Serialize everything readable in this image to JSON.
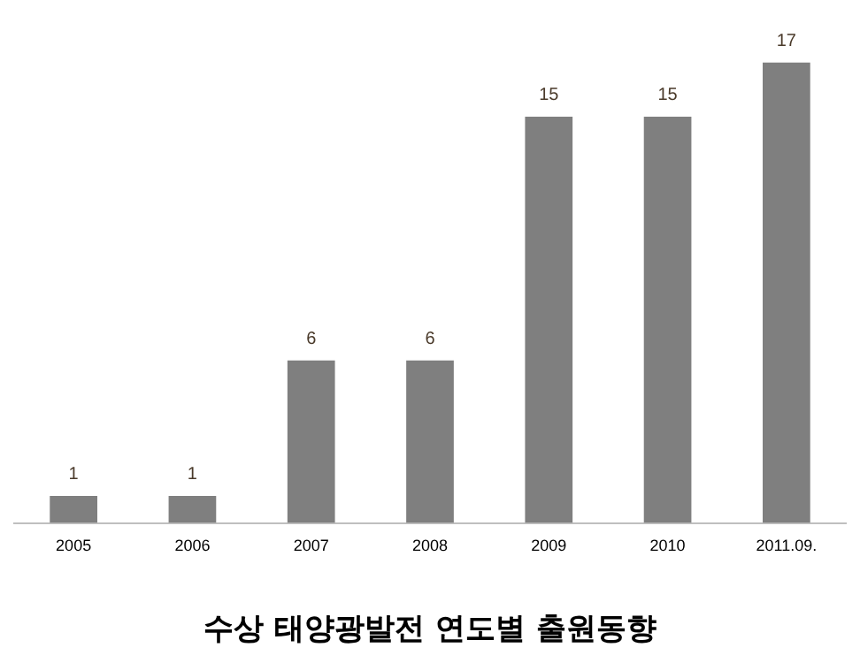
{
  "chart_data": {
    "type": "bar",
    "title": "수상 태양광발전 연도별 출원동향",
    "categories": [
      "2005",
      "2006",
      "2007",
      "2008",
      "2009",
      "2010",
      "2011.09."
    ],
    "values": [
      1,
      1,
      6,
      6,
      15,
      15,
      17
    ],
    "color": "#7f7f7f",
    "data_labels": true,
    "grid": false,
    "legend": false
  }
}
